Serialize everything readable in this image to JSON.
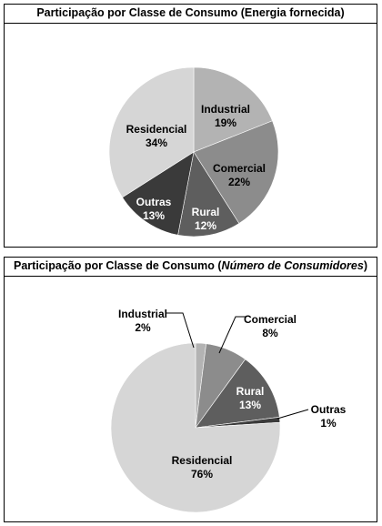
{
  "chart_data": [
    {
      "type": "pie",
      "title_main": "Participação por Classe de Consumo (",
      "title_sub": "Energia fornecida",
      "title_end": ")",
      "categories": [
        "Industrial",
        "Comercial",
        "Rural",
        "Outras",
        "Residencial"
      ],
      "values": [
        19,
        22,
        12,
        13,
        34
      ],
      "value_labels": [
        "19%",
        "22%",
        "12%",
        "13%",
        "34%"
      ],
      "colors": [
        "#b3b3b3",
        "#8c8c8c",
        "#5e5e5e",
        "#3a3a3a",
        "#d6d6d6"
      ],
      "label_colors": [
        "#000000",
        "#000000",
        "#ffffff",
        "#ffffff",
        "#000000"
      ]
    },
    {
      "type": "pie",
      "title_main": "Participação por Classe de Consumo (",
      "title_sub": "Número de Consumidores",
      "title_end": ")",
      "categories": [
        "Industrial",
        "Comercial",
        "Rural",
        "Outras",
        "Residencial"
      ],
      "values": [
        2,
        8,
        13,
        1,
        76
      ],
      "value_labels": [
        "2%",
        "8%",
        "13%",
        "1%",
        "76%"
      ],
      "colors": [
        "#b3b3b3",
        "#8c8c8c",
        "#5e5e5e",
        "#3a3a3a",
        "#d6d6d6"
      ],
      "label_colors": [
        "#000000",
        "#000000",
        "#ffffff",
        "#000000",
        "#000000"
      ]
    }
  ]
}
